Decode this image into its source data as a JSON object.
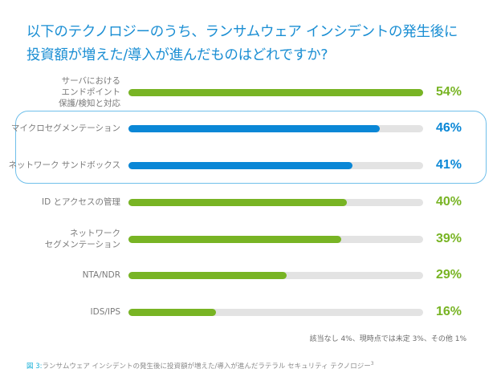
{
  "title": {
    "line1": "以下のテクノロジーのうち、ランサムウェア インシデントの発生後に",
    "line2": "投資額が増えた/導入が進んだものはどれですか?"
  },
  "colors": {
    "title": "#1a8ed3",
    "green": "#78b424",
    "blue": "#0a87d6",
    "track": "#e3e3e3",
    "highlight_border": "#6fbfea"
  },
  "chart_data": {
    "type": "bar",
    "orientation": "horizontal",
    "title": "以下のテクノロジーのうち、ランサムウェア インシデントの発生後に投資額が増えた/導入が進んだものはどれですか?",
    "scale_max": 54,
    "unit": "%",
    "categories": [
      "サーバにおける\nエンドポイント\n保護/検知と対応",
      "マイクロセグメンテーション",
      "ネットワーク サンドボックス",
      "ID とアクセスの管理",
      "ネットワーク\nセグメンテーション",
      "NTA/NDR",
      "IDS/IPS"
    ],
    "values": [
      54,
      46,
      41,
      40,
      39,
      29,
      16
    ],
    "value_labels": [
      "54%",
      "46%",
      "41%",
      "40%",
      "39%",
      "29%",
      "16%"
    ],
    "highlighted": [
      false,
      true,
      true,
      false,
      false,
      false,
      false
    ],
    "bar_colors": [
      "green",
      "blue",
      "blue",
      "green",
      "green",
      "green",
      "green"
    ]
  },
  "footnote": "該当なし 4%、現時点では未定 3%、その他 1%",
  "caption": {
    "figure_label": "図 3:",
    "text": "ランサムウェア インシデントの発生後に投資額が増えた/導入が進んだラテラル セキュリティ テクノロジー",
    "superscript": "3"
  }
}
